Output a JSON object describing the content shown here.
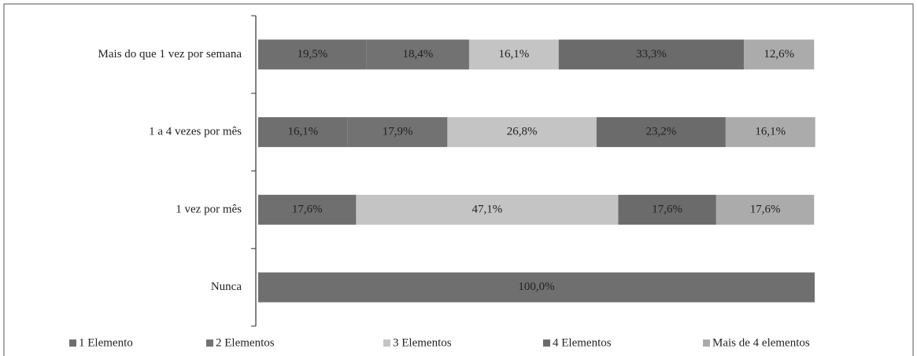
{
  "chart_data": {
    "type": "bar",
    "orientation": "horizontal",
    "stacked": true,
    "categories": [
      "Mais do que 1 vez por semana",
      "1 a 4 vezes por mês",
      "1 vez por mês",
      "Nunca"
    ],
    "xlim": [
      0,
      100
    ],
    "series": [
      {
        "name": "1 Elemento",
        "color": "#6f6f6f",
        "values": [
          19.5,
          16.1,
          17.6,
          100.0
        ],
        "value_labels": [
          "19,5%",
          "16,1%",
          "17,6%",
          "100,0%"
        ]
      },
      {
        "name": "2 Elementos",
        "color": "#727272",
        "values": [
          18.4,
          17.9,
          0,
          0
        ],
        "value_labels": [
          "18,4%",
          "17,9%",
          null,
          null
        ]
      },
      {
        "name": "3 Elementos",
        "color": "#c4c4c4",
        "values": [
          16.1,
          26.8,
          47.1,
          0
        ],
        "value_labels": [
          "16,1%",
          "26,8%",
          "47,1%",
          null
        ]
      },
      {
        "name": "4 Elementos",
        "color": "#6b6b6b",
        "values": [
          33.3,
          23.2,
          17.6,
          0
        ],
        "value_labels": [
          "33,3%",
          "23,2%",
          "17,6%",
          null
        ]
      },
      {
        "name": "Mais de 4 elementos",
        "color": "#ababab",
        "values": [
          12.6,
          16.1,
          17.6,
          0
        ],
        "value_labels": [
          "12,6%",
          "16,1%",
          "17,6%",
          null
        ]
      }
    ],
    "legend": "bottom"
  }
}
